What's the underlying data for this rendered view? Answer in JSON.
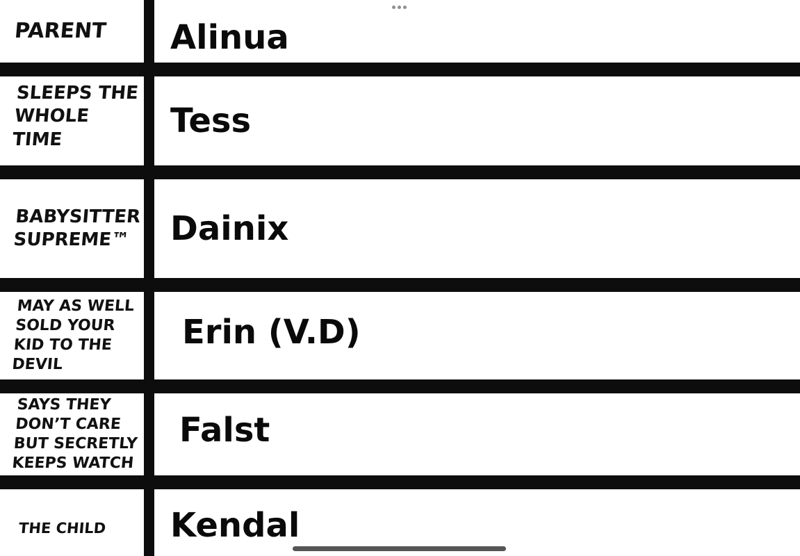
{
  "colors": {
    "background": "#ffffff",
    "grid_lines": "#0d0d0d",
    "label_text": "#111111",
    "name_text": "#0a0a0a",
    "blank_underline": "#555555",
    "ellipsis_dots": "#8f8f8f"
  },
  "icons": {
    "ellipsis": "ellipsis-handle (three gray dots)"
  },
  "rows": [
    {
      "label": "PARENT",
      "name": "Alinua"
    },
    {
      "label": "SLEEPS THE\nWHOLE TIME",
      "name": "Tess"
    },
    {
      "label": "BABYSITTER\nSUPREME™",
      "name": "Dainix"
    },
    {
      "label": "MAY AS WELL\nSOLD YOUR\nKID TO THE\nDEVIL",
      "name": "Erin (V.D)"
    },
    {
      "label": "SAYS THEY\nDON’T CARE\nBUT SECRETLY\nKEEPS WATCH",
      "name": "Falst"
    },
    {
      "label": "THE CHILD",
      "name": "Kendal"
    }
  ],
  "chart_data": {
    "type": "table",
    "rows": [
      {
        "role": "PARENT",
        "character": "Alinua"
      },
      {
        "role": "SLEEPS THE WHOLE TIME",
        "character": "Tess"
      },
      {
        "role": "BABYSITTER SUPREME™",
        "character": "Dainix"
      },
      {
        "role": "MAY AS WELL SOLD YOUR KID TO THE DEVIL",
        "character": "Erin (V.D)"
      },
      {
        "role": "SAYS THEY DON’T CARE BUT SECRETLY KEEPS WATCH",
        "character": "Falst"
      },
      {
        "role": "THE CHILD",
        "character": "Kendal"
      }
    ]
  }
}
